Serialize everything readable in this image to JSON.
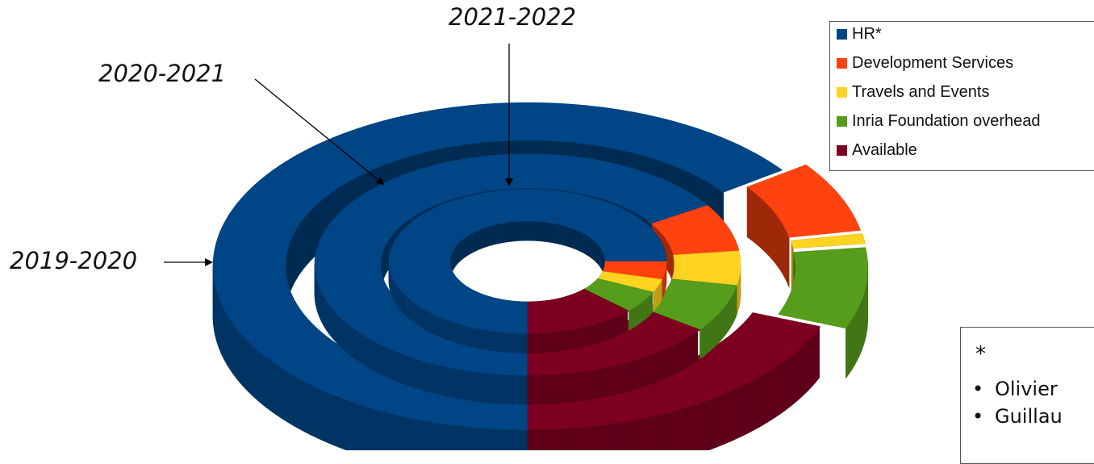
{
  "chart_data": {
    "type": "pie",
    "style": "3d-nested-donut",
    "categories": [
      "HR*",
      "Development Services",
      "Travels and Events",
      "Inria Foundation overhead",
      "Available"
    ],
    "colors": {
      "HR*": "#004586",
      "Development Services": "#ff420e",
      "Travels and Events": "#ffd320",
      "Inria Foundation overhead": "#579d1c",
      "Available": "#7e0021"
    },
    "rings": [
      {
        "name": "2019-2020",
        "values": [
          0.65,
          0.07,
          0.01,
          0.08,
          0.19
        ]
      },
      {
        "name": "2020-2021",
        "values": [
          0.66,
          0.07,
          0.05,
          0.07,
          0.15
        ]
      },
      {
        "name": "2021-2022",
        "values": [
          0.75,
          0.04,
          0.03,
          0.05,
          0.13
        ]
      }
    ],
    "exploded_slices": [
      {
        "ring": "2019-2020",
        "categories": [
          "Development Services",
          "Travels and Events",
          "Inria Foundation overhead"
        ]
      }
    ],
    "legend_position": "top-right"
  },
  "ring_labels": [
    "2019-2020",
    "2020-2021",
    "2021-2022"
  ],
  "legend": [
    {
      "label": "HR*",
      "color": "#004586"
    },
    {
      "label": "Development Services",
      "color": "#ff420e"
    },
    {
      "label": "Travels and Events",
      "color": "#ffd320"
    },
    {
      "label": "Inria Foundation overhead",
      "color": "#579d1c"
    },
    {
      "label": "Available",
      "color": "#7e0021"
    }
  ],
  "note": {
    "marker": "*",
    "items": [
      "Olivier",
      "Guillau"
    ]
  }
}
